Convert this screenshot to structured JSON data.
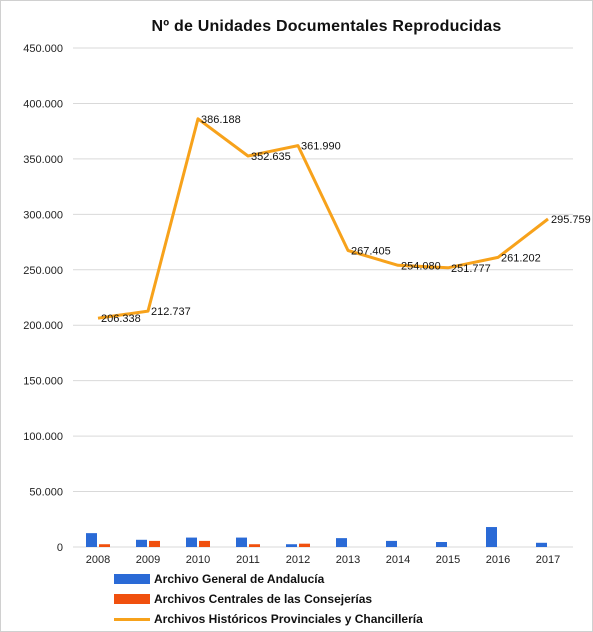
{
  "chart_data": {
    "type": "bar+line",
    "title": "Nº de Unidades Documentales Reproducidas",
    "xlabel": "",
    "ylabel": "",
    "categories": [
      "2008",
      "2009",
      "2010",
      "2011",
      "2012",
      "2013",
      "2014",
      "2015",
      "2016",
      "2017"
    ],
    "ylim": [
      0,
      450000
    ],
    "yticks": [
      0,
      50000,
      100000,
      150000,
      200000,
      250000,
      300000,
      350000,
      400000,
      450000
    ],
    "ytick_labels": [
      "0",
      "50.000",
      "100.000",
      "150.000",
      "200.000",
      "250.000",
      "300.000",
      "350.000",
      "400.000",
      "450.000"
    ],
    "grid": true,
    "legend_position": "bottom",
    "series": [
      {
        "name": "Archivo General de Andalucía",
        "kind": "bar",
        "color": "#2a6ad6",
        "values": [
          12500,
          6500,
          8500,
          8500,
          2500,
          8000,
          5500,
          4500,
          18000,
          3800
        ]
      },
      {
        "name": "Archivos Centrales de las Consejerías",
        "kind": "bar",
        "color": "#f0500e",
        "values": [
          2500,
          5500,
          5500,
          2500,
          3000,
          0,
          0,
          0,
          0,
          0
        ]
      },
      {
        "name": "Archivos Históricos Provinciales y Chancillería",
        "kind": "line",
        "color": "#f7a21b",
        "values": [
          206338,
          212737,
          386188,
          352635,
          361990,
          267405,
          254080,
          251777,
          261202,
          295759
        ],
        "labels": [
          "206.338",
          "212.737",
          "386.188",
          "352.635",
          "361.990",
          "267.405",
          "254.080",
          "251.777",
          "261.202",
          "295.759"
        ]
      }
    ]
  }
}
